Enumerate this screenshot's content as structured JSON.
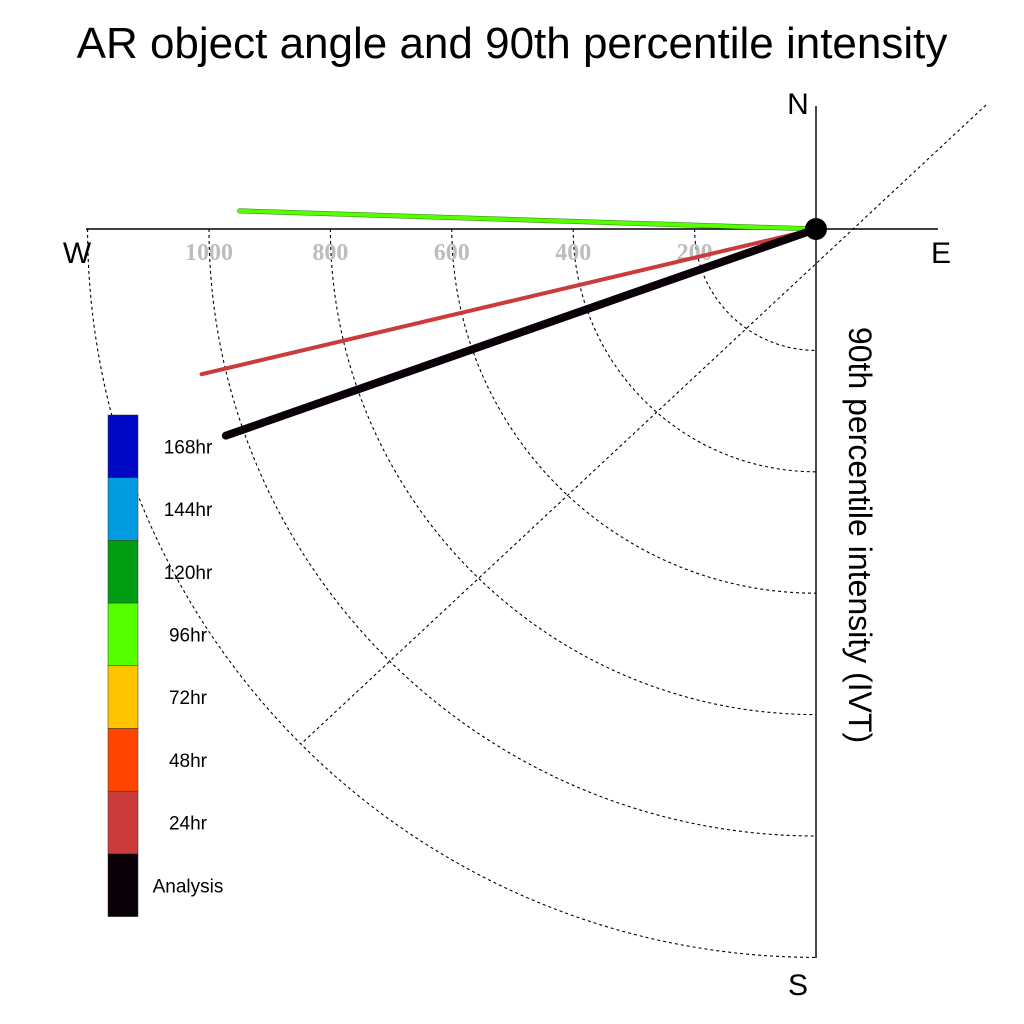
{
  "chart_data": {
    "type": "line",
    "title": "AR object angle and 90th percentile intensity",
    "ylabel": "90th percentile intensity (IVT)",
    "compass": {
      "north": "N",
      "south": "S",
      "east": "E",
      "west": "W"
    },
    "radial_ticks": [
      "200",
      "400",
      "600",
      "800",
      "1000"
    ],
    "radial_tick_values": [
      200,
      400,
      600,
      800,
      1000
    ],
    "rings": [
      200,
      400,
      600,
      800,
      1000,
      1200
    ],
    "rlim": [
      0,
      1200
    ],
    "grid": true,
    "legend_position": "left",
    "series": [
      {
        "name": "96hr",
        "color": "#55ff00",
        "intensity": 950,
        "angle_deg_below_west": -1.8
      },
      {
        "name": "24hr",
        "color": "#cc3b3b",
        "intensity": 1040,
        "angle_deg_below_west": 13.3
      },
      {
        "name": "Analysis",
        "color": "#0a0008",
        "intensity": 1030,
        "angle_deg_below_west": 19.3
      }
    ],
    "legend": [
      {
        "label": "168hr",
        "color": "#0008c4"
      },
      {
        "label": "144hr",
        "color": "#009cdf"
      },
      {
        "label": "120hr",
        "color": "#009e13"
      },
      {
        "label": "96hr",
        "color": "#55ff00"
      },
      {
        "label": "72hr",
        "color": "#ffc400"
      },
      {
        "label": "48hr",
        "color": "#ff4500"
      },
      {
        "label": "24hr",
        "color": "#cc3b3b"
      },
      {
        "label": "Analysis",
        "color": "#0a0008"
      }
    ]
  }
}
